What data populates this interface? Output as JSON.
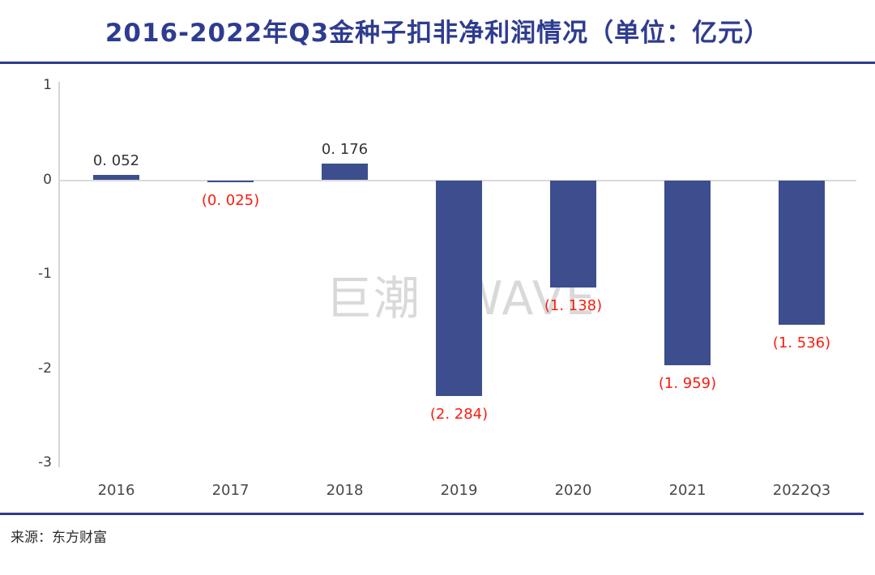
{
  "header": {
    "title": "2016-2022年Q3金种子扣非净利润情况（单位：亿元）"
  },
  "watermark": {
    "text": "巨潮 WAVE"
  },
  "footer": {
    "source": "来源：东方财富"
  },
  "colors": {
    "accent_navy": "#2E3B8C",
    "title_navy": "#2E3C90",
    "bar_fill": "#3D4E8F",
    "positive_label": "#333333",
    "negative_label": "#FB1C10",
    "axis_line": "#D6D6D6",
    "watermark_gray": "#D9D9D9"
  },
  "chart_data": {
    "type": "bar",
    "title": "2016-2022年Q3金种子扣非净利润情况（单位：亿元）",
    "unit": "亿元",
    "categories": [
      "2016",
      "2017",
      "2018",
      "2019",
      "2020",
      "2021",
      "2022Q3"
    ],
    "values": [
      0.052,
      -0.025,
      0.176,
      -2.284,
      -1.138,
      -1.959,
      -1.536
    ],
    "data_labels": [
      "0. 052",
      "(0. 025)",
      "0. 176",
      "(2. 284)",
      "(1. 138)",
      "(1. 959)",
      "(1. 536)"
    ],
    "negative_labels_in_parentheses": true,
    "yticks": [
      1,
      0,
      -1,
      -2,
      -3
    ],
    "ylim": [
      -3,
      1
    ],
    "grid": "zero baseline only",
    "legend": "none",
    "bar_color": "#3D4E8F",
    "positive_label_color": "#333333",
    "negative_label_color": "#FB1C10",
    "watermark": "巨潮 WAVE",
    "source": "来源：东方财富"
  }
}
